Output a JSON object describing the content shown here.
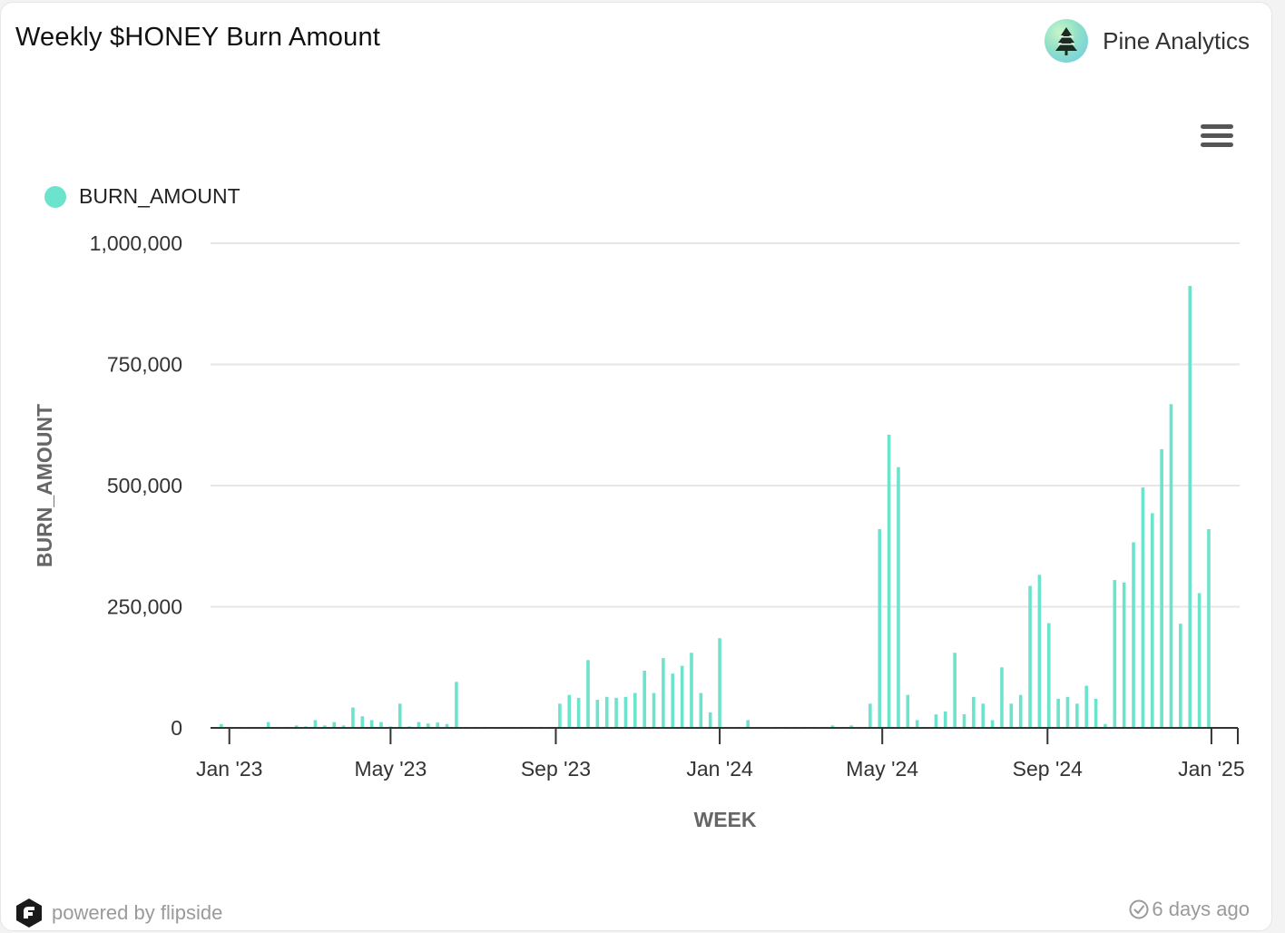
{
  "header": {
    "title": "Weekly $HONEY Burn Amount",
    "brand_name": "Pine Analytics",
    "logo_icon": "pine-tree-icon",
    "menu_icon": "hamburger-menu-icon"
  },
  "footer": {
    "powered_by": "powered by flipside",
    "updated": "6 days ago",
    "powered_icon": "flipside-logo-icon",
    "updated_icon": "check-clock-icon"
  },
  "colors": {
    "bar": "#6ce3cd",
    "grid": "#e6e6e6",
    "axis_text": "#333333",
    "axis_title": "#666666"
  },
  "chart_data": {
    "type": "bar",
    "xlabel": "WEEK",
    "ylabel": "BURN_AMOUNT",
    "ylim": [
      0,
      1000000
    ],
    "yticks": [
      0,
      250000,
      500000,
      750000,
      1000000
    ],
    "ytick_labels": [
      "0",
      "250,000",
      "500,000",
      "750,000",
      "1,000,000"
    ],
    "xticks": [
      "2023-01-01",
      "2023-05-01",
      "2023-09-01",
      "2024-01-01",
      "2024-05-01",
      "2024-09-01",
      "2025-01-01"
    ],
    "xtick_labels": [
      "Jan '23",
      "May '23",
      "Sep '23",
      "Jan '24",
      "May '24",
      "Sep '24",
      "Jan '25"
    ],
    "xrange": [
      "2022-12-18",
      "2025-01-22"
    ],
    "grid": true,
    "legend_position": "top-left",
    "series": [
      {
        "name": "BURN_AMOUNT",
        "points": [
          [
            "2022-12-26",
            8000
          ],
          [
            "2023-01-02",
            2000
          ],
          [
            "2023-01-09",
            2000
          ],
          [
            "2023-01-16",
            2000
          ],
          [
            "2023-01-23",
            2000
          ],
          [
            "2023-01-30",
            12000
          ],
          [
            "2023-02-06",
            2000
          ],
          [
            "2023-02-13",
            2000
          ],
          [
            "2023-02-20",
            5000
          ],
          [
            "2023-02-27",
            3000
          ],
          [
            "2023-03-06",
            16000
          ],
          [
            "2023-03-13",
            5000
          ],
          [
            "2023-03-20",
            12000
          ],
          [
            "2023-03-27",
            5000
          ],
          [
            "2023-04-03",
            42000
          ],
          [
            "2023-04-10",
            24000
          ],
          [
            "2023-04-17",
            16000
          ],
          [
            "2023-04-24",
            12000
          ],
          [
            "2023-05-01",
            3000
          ],
          [
            "2023-05-08",
            50000
          ],
          [
            "2023-05-15",
            3000
          ],
          [
            "2023-05-22",
            12000
          ],
          [
            "2023-05-29",
            9000
          ],
          [
            "2023-06-05",
            11000
          ],
          [
            "2023-06-12",
            8000
          ],
          [
            "2023-06-19",
            95000
          ],
          [
            "2023-06-26",
            2000
          ],
          [
            "2023-07-03",
            2000
          ],
          [
            "2023-07-10",
            2000
          ],
          [
            "2023-07-17",
            2000
          ],
          [
            "2023-07-24",
            2000
          ],
          [
            "2023-07-31",
            2000
          ],
          [
            "2023-08-07",
            2000
          ],
          [
            "2023-08-14",
            2000
          ],
          [
            "2023-08-21",
            2000
          ],
          [
            "2023-08-28",
            2000
          ],
          [
            "2023-09-04",
            50000
          ],
          [
            "2023-09-11",
            68000
          ],
          [
            "2023-09-18",
            62000
          ],
          [
            "2023-09-25",
            140000
          ],
          [
            "2023-10-02",
            58000
          ],
          [
            "2023-10-09",
            64000
          ],
          [
            "2023-10-16",
            62000
          ],
          [
            "2023-10-23",
            64000
          ],
          [
            "2023-10-30",
            72000
          ],
          [
            "2023-11-06",
            118000
          ],
          [
            "2023-11-13",
            72000
          ],
          [
            "2023-11-20",
            144000
          ],
          [
            "2023-11-27",
            112000
          ],
          [
            "2023-12-04",
            128000
          ],
          [
            "2023-12-11",
            155000
          ],
          [
            "2023-12-18",
            72000
          ],
          [
            "2023-12-25",
            32000
          ],
          [
            "2024-01-01",
            185000
          ],
          [
            "2024-01-08",
            2000
          ],
          [
            "2024-01-15",
            2000
          ],
          [
            "2024-01-22",
            16000
          ],
          [
            "2024-01-29",
            2000
          ],
          [
            "2024-02-05",
            2000
          ],
          [
            "2024-02-12",
            2000
          ],
          [
            "2024-02-19",
            2000
          ],
          [
            "2024-02-26",
            2000
          ],
          [
            "2024-03-04",
            2000
          ],
          [
            "2024-03-11",
            2000
          ],
          [
            "2024-03-18",
            2000
          ],
          [
            "2024-03-25",
            5000
          ],
          [
            "2024-04-01",
            2000
          ],
          [
            "2024-04-08",
            5000
          ],
          [
            "2024-04-15",
            2000
          ],
          [
            "2024-04-22",
            50000
          ],
          [
            "2024-04-29",
            410000
          ],
          [
            "2024-05-06",
            605000
          ],
          [
            "2024-05-13",
            538000
          ],
          [
            "2024-05-20",
            68000
          ],
          [
            "2024-05-27",
            16000
          ],
          [
            "2024-06-03",
            2000
          ],
          [
            "2024-06-10",
            28000
          ],
          [
            "2024-06-17",
            34000
          ],
          [
            "2024-06-24",
            155000
          ],
          [
            "2024-07-01",
            28000
          ],
          [
            "2024-07-08",
            64000
          ],
          [
            "2024-07-15",
            50000
          ],
          [
            "2024-07-22",
            16000
          ],
          [
            "2024-07-29",
            125000
          ],
          [
            "2024-08-05",
            50000
          ],
          [
            "2024-08-12",
            68000
          ],
          [
            "2024-08-19",
            293000
          ],
          [
            "2024-08-26",
            316000
          ],
          [
            "2024-09-02",
            216000
          ],
          [
            "2024-09-09",
            60000
          ],
          [
            "2024-09-16",
            64000
          ],
          [
            "2024-09-23",
            50000
          ],
          [
            "2024-09-30",
            87000
          ],
          [
            "2024-10-07",
            60000
          ],
          [
            "2024-10-14",
            8000
          ],
          [
            "2024-10-21",
            305000
          ],
          [
            "2024-10-28",
            300000
          ],
          [
            "2024-11-04",
            383000
          ],
          [
            "2024-11-11",
            496000
          ],
          [
            "2024-11-18",
            443000
          ],
          [
            "2024-11-25",
            575000
          ],
          [
            "2024-12-02",
            668000
          ],
          [
            "2024-12-09",
            215000
          ],
          [
            "2024-12-16",
            912000
          ],
          [
            "2024-12-23",
            278000
          ],
          [
            "2024-12-30",
            410000
          ]
        ]
      }
    ]
  }
}
